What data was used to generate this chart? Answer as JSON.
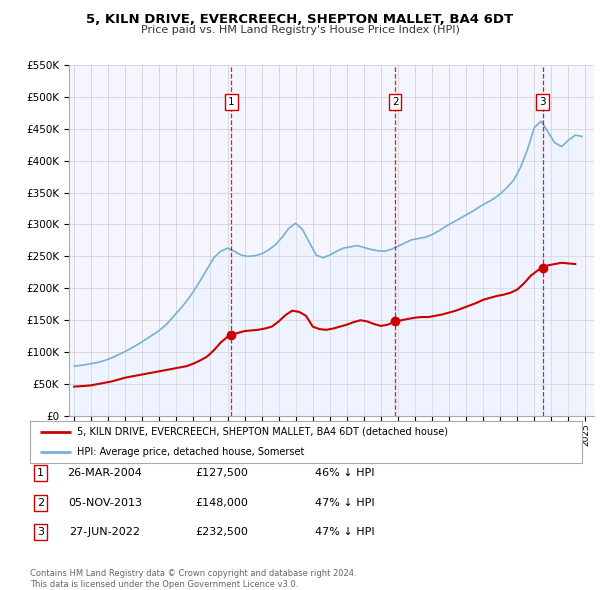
{
  "title": "5, KILN DRIVE, EVERCREECH, SHEPTON MALLET, BA4 6DT",
  "subtitle": "Price paid vs. HM Land Registry's House Price Index (HPI)",
  "ylim": [
    0,
    550000
  ],
  "yticks": [
    0,
    50000,
    100000,
    150000,
    200000,
    250000,
    300000,
    350000,
    400000,
    450000,
    500000,
    550000
  ],
  "ytick_labels": [
    "£0",
    "£50K",
    "£100K",
    "£150K",
    "£200K",
    "£250K",
    "£300K",
    "£350K",
    "£400K",
    "£450K",
    "£500K",
    "£550K"
  ],
  "xlim_start": 1994.7,
  "xlim_end": 2025.5,
  "sale_dates": [
    2004.23,
    2013.84,
    2022.48
  ],
  "sale_prices": [
    127500,
    148000,
    232500
  ],
  "sale_labels": [
    "1",
    "2",
    "3"
  ],
  "red_line_color": "#cc0000",
  "blue_line_color": "#7ab0d4",
  "blue_fill_color": "#ddeeff",
  "sale_dot_color": "#cc0000",
  "vline_color": "#cc0000",
  "grid_color": "#cccccc",
  "bg_color": "#ffffff",
  "plot_bg_color": "#f5f5ff",
  "legend_entry1": "5, KILN DRIVE, EVERCREECH, SHEPTON MALLET, BA4 6DT (detached house)",
  "legend_entry2": "HPI: Average price, detached house, Somerset",
  "table_rows": [
    [
      "1",
      "26-MAR-2004",
      "£127,500",
      "46% ↓ HPI"
    ],
    [
      "2",
      "05-NOV-2013",
      "£148,000",
      "47% ↓ HPI"
    ],
    [
      "3",
      "27-JUN-2022",
      "£232,500",
      "47% ↓ HPI"
    ]
  ],
  "footer_text": "Contains HM Land Registry data © Crown copyright and database right 2024.\nThis data is licensed under the Open Government Licence v3.0.",
  "red_price_data_x": [
    1995.0,
    1995.3,
    1995.6,
    1996.0,
    1996.4,
    1996.8,
    1997.2,
    1997.6,
    1998.0,
    1998.4,
    1998.8,
    1999.2,
    1999.6,
    2000.0,
    2000.4,
    2000.8,
    2001.2,
    2001.6,
    2002.0,
    2002.4,
    2002.8,
    2003.2,
    2003.6,
    2004.0,
    2004.23,
    2004.6,
    2005.0,
    2005.4,
    2005.8,
    2006.2,
    2006.6,
    2007.0,
    2007.4,
    2007.8,
    2008.2,
    2008.6,
    2009.0,
    2009.4,
    2009.8,
    2010.2,
    2010.6,
    2011.0,
    2011.4,
    2011.8,
    2012.2,
    2012.6,
    2013.0,
    2013.4,
    2013.84,
    2014.2,
    2014.6,
    2015.0,
    2015.4,
    2015.8,
    2016.2,
    2016.6,
    2017.0,
    2017.4,
    2017.8,
    2018.2,
    2018.6,
    2019.0,
    2019.4,
    2019.8,
    2020.2,
    2020.6,
    2021.0,
    2021.4,
    2021.8,
    2022.2,
    2022.48,
    2022.8,
    2023.2,
    2023.6,
    2024.0,
    2024.4
  ],
  "red_price_data_y": [
    46000,
    46500,
    47000,
    48000,
    50000,
    52000,
    54000,
    57000,
    60000,
    62000,
    64000,
    66000,
    68000,
    70000,
    72000,
    74000,
    76000,
    78000,
    82000,
    87000,
    93000,
    103000,
    115000,
    124000,
    127500,
    130000,
    133000,
    134000,
    135000,
    137000,
    140000,
    148000,
    158000,
    165000,
    163000,
    157000,
    140000,
    136000,
    135000,
    137000,
    140000,
    143000,
    147000,
    150000,
    148000,
    144000,
    141000,
    143000,
    148000,
    150000,
    152000,
    154000,
    155000,
    155000,
    157000,
    159000,
    162000,
    165000,
    169000,
    173000,
    177000,
    182000,
    185000,
    188000,
    190000,
    193000,
    198000,
    208000,
    220000,
    228000,
    232500,
    236000,
    238000,
    240000,
    239000,
    238000
  ],
  "blue_hpi_data_x": [
    1995.0,
    1995.3,
    1995.6,
    1996.0,
    1996.4,
    1996.8,
    1997.2,
    1997.6,
    1998.0,
    1998.4,
    1998.8,
    1999.2,
    1999.6,
    2000.0,
    2000.4,
    2000.8,
    2001.2,
    2001.6,
    2002.0,
    2002.4,
    2002.8,
    2003.2,
    2003.6,
    2004.0,
    2004.4,
    2004.8,
    2005.2,
    2005.6,
    2006.0,
    2006.4,
    2006.8,
    2007.2,
    2007.6,
    2008.0,
    2008.4,
    2008.8,
    2009.2,
    2009.6,
    2010.0,
    2010.4,
    2010.8,
    2011.2,
    2011.6,
    2012.0,
    2012.4,
    2012.8,
    2013.2,
    2013.6,
    2014.0,
    2014.4,
    2014.8,
    2015.2,
    2015.6,
    2016.0,
    2016.4,
    2016.8,
    2017.2,
    2017.6,
    2018.0,
    2018.4,
    2018.8,
    2019.2,
    2019.6,
    2020.0,
    2020.4,
    2020.8,
    2021.2,
    2021.6,
    2022.0,
    2022.4,
    2022.8,
    2023.2,
    2023.6,
    2024.0,
    2024.4,
    2024.8
  ],
  "blue_hpi_data_y": [
    78000,
    79000,
    80000,
    82000,
    84000,
    87000,
    91000,
    96000,
    101000,
    107000,
    113000,
    120000,
    127000,
    134000,
    143000,
    155000,
    167000,
    180000,
    195000,
    212000,
    230000,
    248000,
    258000,
    263000,
    258000,
    252000,
    250000,
    251000,
    254000,
    260000,
    268000,
    280000,
    294000,
    302000,
    292000,
    272000,
    252000,
    248000,
    252000,
    258000,
    263000,
    265000,
    267000,
    264000,
    261000,
    259000,
    258000,
    261000,
    266000,
    271000,
    276000,
    278000,
    280000,
    284000,
    290000,
    297000,
    303000,
    309000,
    315000,
    321000,
    328000,
    334000,
    340000,
    348000,
    358000,
    370000,
    390000,
    418000,
    452000,
    462000,
    445000,
    428000,
    422000,
    432000,
    440000,
    438000
  ]
}
